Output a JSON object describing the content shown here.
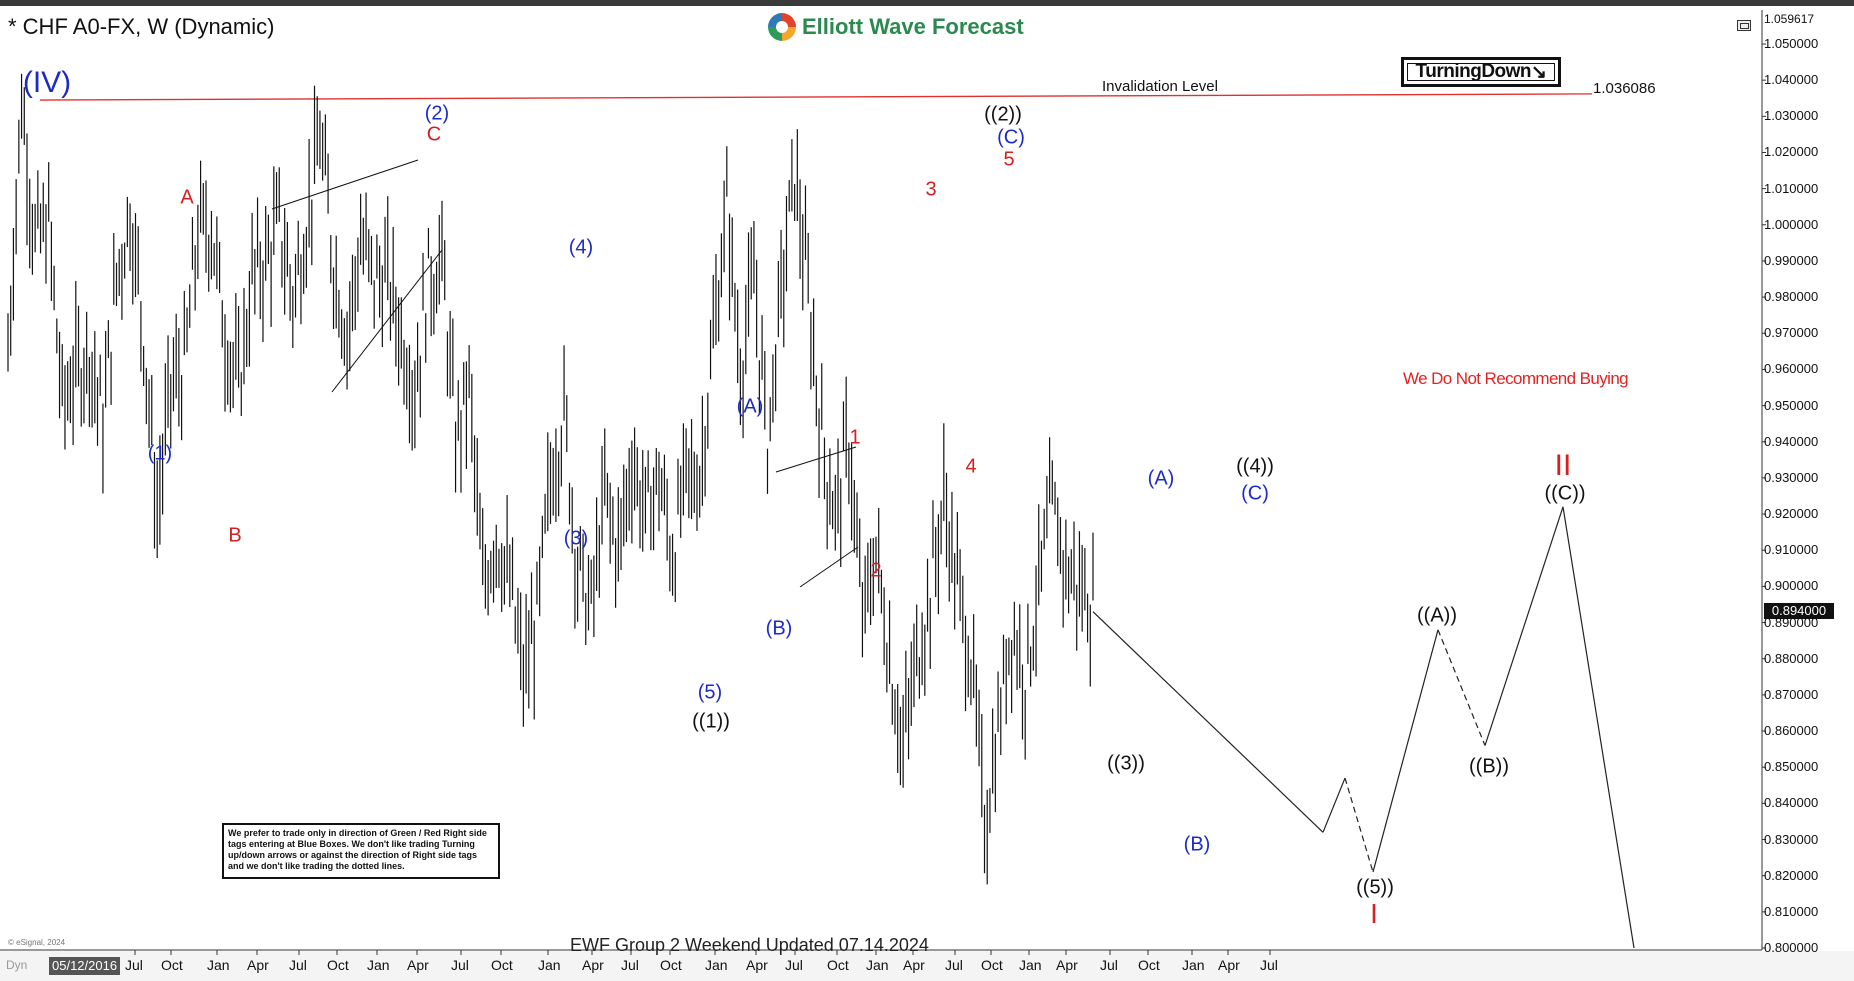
{
  "header": {
    "title": "* CHF A0-FX, W (Dynamic)",
    "logo_text": "Elliott Wave Forecast",
    "top_price": "1.059617"
  },
  "chart_data": {
    "type": "ohlc",
    "symbol": "CHF A0-FX",
    "timeframe": "W",
    "ylim": [
      0.8,
      1.059617
    ],
    "y_ticks": [
      "1.050000",
      "1.040000",
      "1.030000",
      "1.020000",
      "1.010000",
      "1.000000",
      "0.990000",
      "0.980000",
      "0.970000",
      "0.960000",
      "0.950000",
      "0.940000",
      "0.930000",
      "0.920000",
      "0.910000",
      "0.900000",
      "0.890000",
      "0.880000",
      "0.870000",
      "0.860000",
      "0.850000",
      "0.840000",
      "0.830000",
      "0.820000",
      "0.810000",
      "0.800000"
    ],
    "x_ticks": [
      "Jul",
      "Oct",
      "Jan",
      "Apr",
      "Jul",
      "Oct",
      "Jan",
      "Apr",
      "Jul",
      "Oct",
      "Jan",
      "Apr",
      "Jul",
      "Oct",
      "Jan",
      "Apr",
      "Jul",
      "Oct",
      "Jan",
      "Apr",
      "Jul",
      "Oct",
      "Jan",
      "Apr",
      "Jul",
      "Oct",
      "Jan",
      "Apr",
      "Jul"
    ],
    "start_date": "05/12/2016",
    "last_price": "0.894000",
    "invalidation_level": "1.036086",
    "invalidation_label": "Invalidation Level",
    "price_path": [
      [
        0,
        0.965
      ],
      [
        1,
        1.035
      ],
      [
        2,
        0.995
      ],
      [
        3,
        1.0
      ],
      [
        4,
        0.95
      ],
      [
        5,
        0.96
      ],
      [
        6,
        0.965
      ],
      [
        7,
        0.945
      ],
      [
        8,
        0.985
      ],
      [
        9,
        1.004
      ],
      [
        10,
        0.97
      ],
      [
        11,
        0.92
      ],
      [
        12,
        0.955
      ],
      [
        13,
        0.96
      ],
      [
        14,
        0.998
      ],
      [
        15,
        1.0
      ],
      [
        16,
        0.97
      ],
      [
        17,
        0.955
      ],
      [
        18,
        0.985
      ],
      [
        19,
        0.99
      ],
      [
        20,
        1.0
      ],
      [
        21,
        0.98
      ],
      [
        22,
        1.0
      ],
      [
        23,
        1.024
      ],
      [
        24,
        0.99
      ],
      [
        25,
        0.97
      ],
      [
        26,
        0.995
      ],
      [
        27,
        0.985
      ],
      [
        28,
        0.985
      ],
      [
        29,
        0.97
      ],
      [
        30,
        0.955
      ],
      [
        31,
        0.985
      ],
      [
        32,
        0.99
      ],
      [
        33,
        0.94
      ],
      [
        34,
        0.955
      ],
      [
        35,
        0.9
      ],
      [
        36,
        0.915
      ],
      [
        37,
        0.9
      ],
      [
        38,
        0.875
      ],
      [
        39,
        0.89
      ],
      [
        40,
        0.93
      ],
      [
        41,
        0.948
      ],
      [
        42,
        0.905
      ],
      [
        43,
        0.893
      ],
      [
        44,
        0.925
      ],
      [
        45,
        0.91
      ],
      [
        46,
        0.935
      ],
      [
        47,
        0.92
      ],
      [
        48,
        0.93
      ],
      [
        49,
        0.908
      ],
      [
        50,
        0.93
      ],
      [
        51,
        0.93
      ],
      [
        52,
        0.968
      ],
      [
        53,
        1.005
      ],
      [
        54,
        0.96
      ],
      [
        55,
        0.985
      ],
      [
        56,
        0.94
      ],
      [
        57,
        0.98
      ],
      [
        58,
        1.015
      ],
      [
        59,
        0.98
      ],
      [
        60,
        0.94
      ],
      [
        61,
        0.92
      ],
      [
        62,
        0.94
      ],
      [
        63,
        0.89
      ],
      [
        64,
        0.91
      ],
      [
        65,
        0.88
      ],
      [
        66,
        0.855
      ],
      [
        67,
        0.88
      ],
      [
        68,
        0.898
      ],
      [
        69,
        0.924
      ],
      [
        70,
        0.9
      ],
      [
        71,
        0.88
      ],
      [
        72,
        0.834
      ],
      [
        73,
        0.86
      ],
      [
        74,
        0.89
      ],
      [
        75,
        0.875
      ],
      [
        76,
        0.9
      ],
      [
        77,
        0.922
      ],
      [
        78,
        0.905
      ],
      [
        79,
        0.9
      ],
      [
        80,
        0.894
      ]
    ],
    "channel_lines": [
      {
        "from": [
          "Apr",
          1.005
        ],
        "to": [
          "Apr",
          1.019
        ]
      },
      {
        "from": [
          "Oct",
          0.955
        ],
        "to": [
          "Apr",
          0.994
        ]
      },
      {
        "from": [
          "Jul",
          0.932
        ],
        "to": [
          "Oct",
          0.938
        ]
      },
      {
        "from": [
          "Jul",
          0.9
        ],
        "to": [
          "Oct",
          0.91
        ]
      }
    ],
    "projection": [
      {
        "x": 0.0,
        "y": 0.893,
        "style": "solid"
      },
      {
        "x": 1.0,
        "y": 0.832,
        "style": "solid"
      },
      {
        "x": 2.0,
        "y": 0.847,
        "style": "solid"
      },
      {
        "x": 3.0,
        "y": 0.821,
        "style": "dashed"
      },
      {
        "x": 4.0,
        "y": 0.888,
        "style": "solid"
      },
      {
        "x": 5.0,
        "y": 0.856,
        "style": "dashed"
      },
      {
        "x": 6.0,
        "y": 0.922,
        "style": "solid"
      },
      {
        "x": 7.0,
        "y": 0.8,
        "style": "solid"
      }
    ],
    "wave_labels": [
      {
        "text": "(IV)",
        "color": "#1c2bc8",
        "size": "large"
      },
      {
        "text": "(1)",
        "color": "#1c2bc8"
      },
      {
        "text": "A",
        "color": "#d42020"
      },
      {
        "text": "B",
        "color": "#d42020"
      },
      {
        "text": "(2)",
        "color": "#1c2bc8"
      },
      {
        "text": "C",
        "color": "#d42020"
      },
      {
        "text": "(4)",
        "color": "#1c2bc8"
      },
      {
        "text": "(3)",
        "color": "#1c2bc8"
      },
      {
        "text": "(5)",
        "color": "#1c2bc8"
      },
      {
        "text": "((1))",
        "color": "#111111"
      },
      {
        "text": "(A)",
        "color": "#1c2bc8"
      },
      {
        "text": "(B)",
        "color": "#1c2bc8"
      },
      {
        "text": "1",
        "color": "#d42020"
      },
      {
        "text": "2",
        "color": "#d42020"
      },
      {
        "text": "3",
        "color": "#d42020"
      },
      {
        "text": "4",
        "color": "#d42020"
      },
      {
        "text": "5",
        "color": "#d42020"
      },
      {
        "text": "(C)",
        "color": "#1c2bc8"
      },
      {
        "text": "((2))",
        "color": "#111111"
      },
      {
        "text": "((3))",
        "color": "#111111"
      },
      {
        "text": "(A)",
        "color": "#1c2bc8"
      },
      {
        "text": "(B)",
        "color": "#1c2bc8"
      },
      {
        "text": "((4))",
        "color": "#111111"
      },
      {
        "text": "(C)",
        "color": "#1c2bc8"
      },
      {
        "text": "((5))",
        "color": "#111111"
      },
      {
        "text": "I",
        "color": "#d42020",
        "size": "large"
      },
      {
        "text": "((A))",
        "color": "#111111"
      },
      {
        "text": "((B))",
        "color": "#111111"
      },
      {
        "text": "((C))",
        "color": "#111111"
      },
      {
        "text": "II",
        "color": "#d42020",
        "size": "large"
      }
    ]
  },
  "badges": {
    "turning": "TurningDown",
    "turning_arrow": "↘"
  },
  "warning": "We Do Not Recommend Buying",
  "note": "We prefer to trade only in direction of Green / Red Right side tags entering at Blue Boxes. We don't like trading Turning up/down arrows or against the direction of Right side tags and we don't like trading the dotted lines.",
  "footer": "EWF Group 2 Weekend Updated 07.14.2024",
  "copyright": "© eSignal, 2024",
  "dyn_label": "Dyn",
  "colors": {
    "invalidation": "#e03030",
    "wave_blue": "#1c2bc8",
    "wave_red": "#d42020",
    "bars": "#111111"
  }
}
